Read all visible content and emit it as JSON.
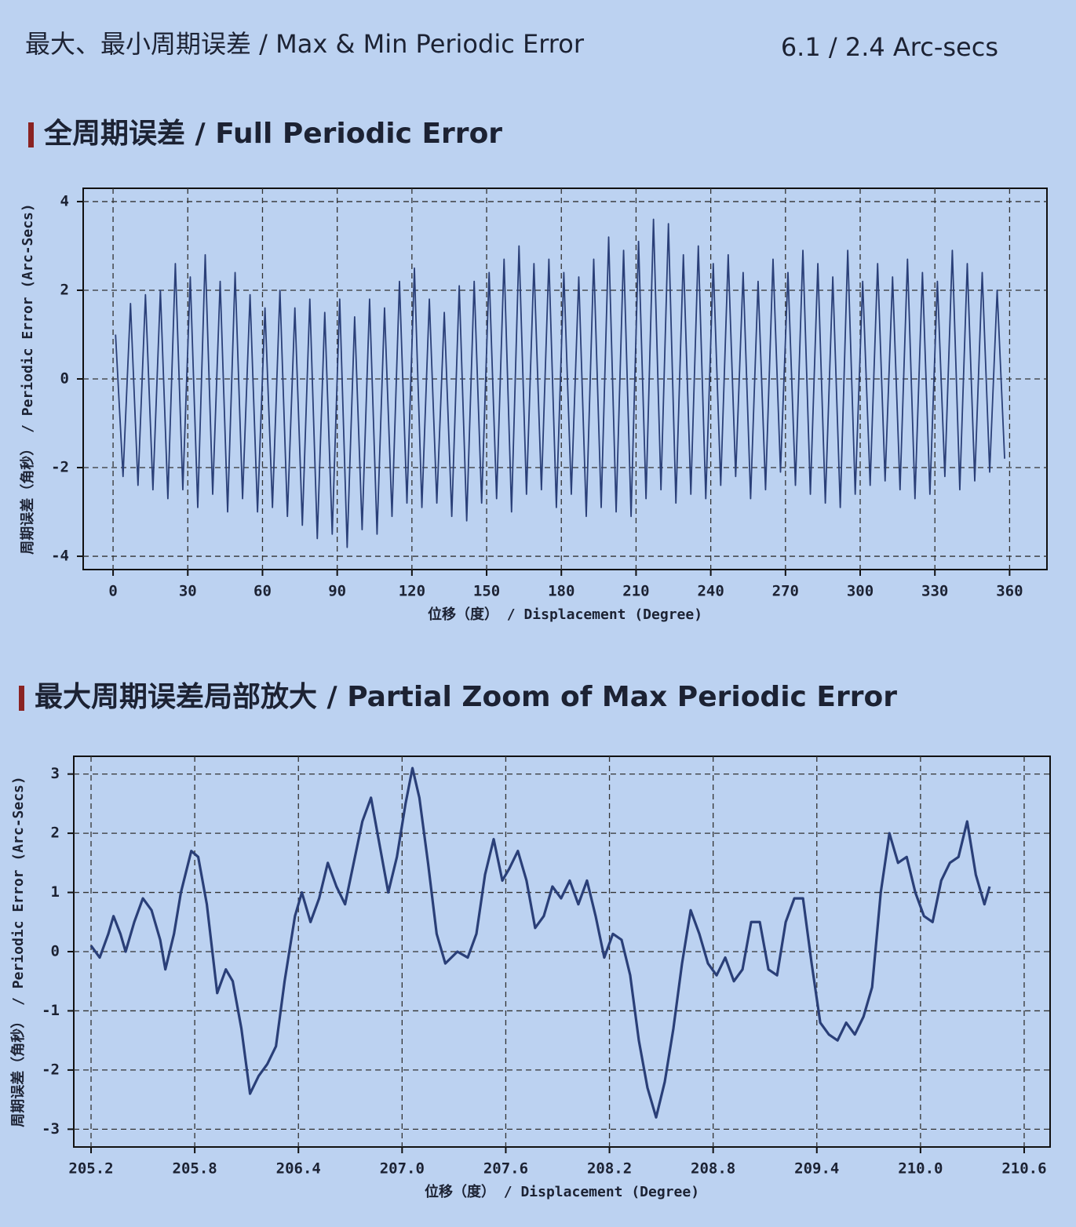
{
  "header": {
    "label": "最大、最小周期误差 / Max & Min Periodic Error",
    "value": "6.1 / 2.4 Arc-secs"
  },
  "chart_data": [
    {
      "type": "line",
      "title": "全周期误差 / Full Periodic Error",
      "x_label": "位移（度） / Displacement (Degree)",
      "y_label": "周期误差（角秒） / Periodic Error (Arc-Secs)",
      "color": "#2a3f78",
      "grid": true,
      "xlim": [
        -12,
        375
      ],
      "ylim": [
        -4.3,
        4.3
      ],
      "xticks": [
        0,
        30,
        60,
        90,
        120,
        150,
        180,
        210,
        240,
        270,
        300,
        330,
        360
      ],
      "yticks": [
        -4,
        -2,
        0,
        2,
        4
      ],
      "x": [
        1,
        4,
        7,
        10,
        13,
        16,
        19,
        22,
        25,
        28,
        31,
        34,
        37,
        40,
        43,
        46,
        49,
        52,
        55,
        58,
        61,
        64,
        67,
        70,
        73,
        76,
        79,
        82,
        85,
        88,
        91,
        94,
        97,
        100,
        103,
        106,
        109,
        112,
        115,
        118,
        121,
        124,
        127,
        130,
        133,
        136,
        139,
        142,
        145,
        148,
        151,
        154,
        157,
        160,
        163,
        166,
        169,
        172,
        175,
        178,
        181,
        184,
        187,
        190,
        193,
        196,
        199,
        202,
        205,
        208,
        211,
        214,
        217,
        220,
        223,
        226,
        229,
        232,
        235,
        238,
        241,
        244,
        247,
        250,
        253,
        256,
        259,
        262,
        265,
        268,
        271,
        274,
        277,
        280,
        283,
        286,
        289,
        292,
        295,
        298,
        301,
        304,
        307,
        310,
        313,
        316,
        319,
        322,
        325,
        328,
        331,
        334,
        337,
        340,
        343,
        346,
        349,
        352,
        355,
        358
      ],
      "values": [
        1.0,
        -2.2,
        1.7,
        -2.4,
        1.9,
        -2.5,
        2.0,
        -2.7,
        2.6,
        -2.5,
        2.3,
        -2.9,
        2.8,
        -2.6,
        2.2,
        -3.0,
        2.4,
        -2.7,
        1.9,
        -3.0,
        1.6,
        -2.9,
        2.0,
        -3.1,
        1.6,
        -3.3,
        1.8,
        -3.6,
        1.5,
        -3.5,
        1.8,
        -3.8,
        1.4,
        -3.4,
        1.8,
        -3.5,
        1.6,
        -3.1,
        2.2,
        -2.8,
        2.5,
        -2.9,
        1.8,
        -2.8,
        1.5,
        -3.1,
        2.1,
        -3.2,
        2.2,
        -2.8,
        2.4,
        -2.7,
        2.7,
        -3.0,
        3.0,
        -2.6,
        2.6,
        -2.5,
        2.7,
        -2.9,
        2.4,
        -2.6,
        2.3,
        -3.1,
        2.7,
        -2.9,
        3.2,
        -3.0,
        2.9,
        -3.1,
        3.1,
        -2.7,
        3.6,
        -2.5,
        3.5,
        -2.8,
        2.8,
        -2.6,
        3.0,
        -2.7,
        2.6,
        -2.4,
        2.8,
        -2.2,
        2.4,
        -2.7,
        2.2,
        -2.5,
        2.7,
        -2.1,
        2.4,
        -2.4,
        2.9,
        -2.6,
        2.6,
        -2.8,
        2.3,
        -2.9,
        2.9,
        -2.6,
        2.2,
        -2.4,
        2.6,
        -2.3,
        2.3,
        -2.5,
        2.7,
        -2.7,
        2.4,
        -2.6,
        2.2,
        -2.2,
        2.9,
        -2.5,
        2.6,
        -2.3,
        2.4,
        -2.1,
        2.0,
        -1.8
      ]
    },
    {
      "type": "line",
      "title": "最大周期误差局部放大 / Partial Zoom of Max Periodic Error",
      "x_label": "位移（度） / Displacement (Degree)",
      "y_label": "周期误差（角秒） / Periodic Error (Arc-Secs)",
      "color": "#2a3f78",
      "grid": true,
      "xlim": [
        205.1,
        210.75
      ],
      "ylim": [
        -3.3,
        3.3
      ],
      "xticks": [
        205.2,
        205.8,
        206.4,
        {
          "value": 207,
          "label": "207.0"
        },
        207.6,
        208.2,
        208.8,
        209.4,
        {
          "value": 210,
          "label": "210.0"
        },
        210.6
      ],
      "yticks": [
        -3,
        -2,
        -1,
        0,
        1,
        2,
        3
      ],
      "x": [
        205.2,
        205.25,
        205.3,
        205.33,
        205.37,
        205.4,
        205.45,
        205.5,
        205.55,
        205.6,
        205.63,
        205.68,
        205.72,
        205.78,
        205.82,
        205.87,
        205.93,
        205.98,
        206.02,
        206.07,
        206.12,
        206.17,
        206.22,
        206.27,
        206.32,
        206.38,
        206.42,
        206.47,
        206.52,
        206.57,
        206.62,
        206.67,
        206.72,
        206.77,
        206.82,
        206.87,
        206.92,
        206.97,
        207.02,
        207.06,
        207.1,
        207.15,
        207.2,
        207.25,
        207.32,
        207.38,
        207.43,
        207.48,
        207.53,
        207.58,
        207.62,
        207.67,
        207.72,
        207.77,
        207.82,
        207.87,
        207.92,
        207.97,
        208.02,
        208.07,
        208.12,
        208.17,
        208.22,
        208.27,
        208.32,
        208.37,
        208.42,
        208.47,
        208.52,
        208.57,
        208.62,
        208.67,
        208.72,
        208.77,
        208.82,
        208.87,
        208.92,
        208.97,
        209.02,
        209.07,
        209.12,
        209.17,
        209.22,
        209.27,
        209.32,
        209.37,
        209.42,
        209.47,
        209.52,
        209.57,
        209.62,
        209.67,
        209.72,
        209.77,
        209.82,
        209.87,
        209.92,
        209.97,
        210.02,
        210.07,
        210.12,
        210.17,
        210.22,
        210.27,
        210.32,
        210.37,
        210.4
      ],
      "values": [
        0.1,
        -0.1,
        0.3,
        0.6,
        0.3,
        0.0,
        0.5,
        0.9,
        0.7,
        0.2,
        -0.3,
        0.3,
        1.0,
        1.7,
        1.6,
        0.8,
        -0.7,
        -0.3,
        -0.5,
        -1.3,
        -2.4,
        -2.1,
        -1.9,
        -1.6,
        -0.5,
        0.6,
        1.0,
        0.5,
        0.9,
        1.5,
        1.1,
        0.8,
        1.5,
        2.2,
        2.6,
        1.8,
        1.0,
        1.6,
        2.5,
        3.1,
        2.6,
        1.5,
        0.3,
        -0.2,
        0.0,
        -0.1,
        0.3,
        1.3,
        1.9,
        1.2,
        1.4,
        1.7,
        1.2,
        0.4,
        0.6,
        1.1,
        0.9,
        1.2,
        0.8,
        1.2,
        0.6,
        -0.1,
        0.3,
        0.2,
        -0.4,
        -1.5,
        -2.3,
        -2.8,
        -2.2,
        -1.3,
        -0.2,
        0.7,
        0.3,
        -0.2,
        -0.4,
        -0.1,
        -0.5,
        -0.3,
        0.5,
        0.5,
        -0.3,
        -0.4,
        0.5,
        0.9,
        0.9,
        -0.2,
        -1.2,
        -1.4,
        -1.5,
        -1.2,
        -1.4,
        -1.1,
        -0.6,
        1.0,
        2.0,
        1.5,
        1.6,
        1.0,
        0.6,
        0.5,
        1.2,
        1.5,
        1.6,
        2.2,
        1.3,
        0.8,
        1.1
      ]
    }
  ]
}
